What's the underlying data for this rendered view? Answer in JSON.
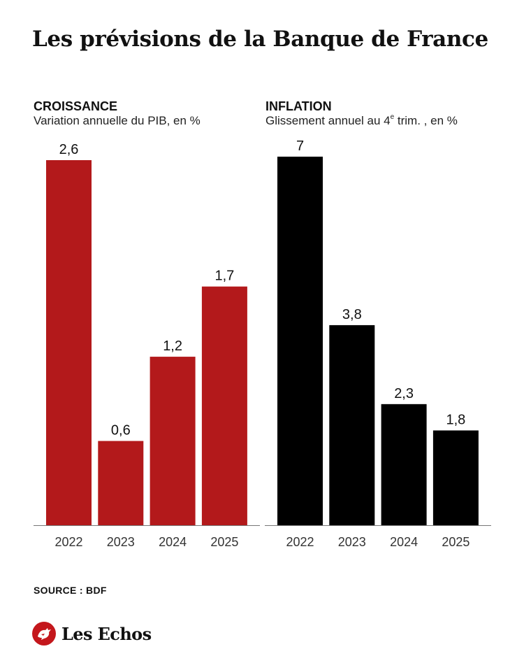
{
  "title": "Les prévisions de la Banque de France",
  "chart_data": [
    {
      "type": "bar",
      "title": "CROISSANCE",
      "subtitle": "Variation annuelle du PIB, en %",
      "categories": [
        "2022",
        "2023",
        "2024",
        "2025"
      ],
      "values": [
        2.6,
        0.6,
        1.2,
        1.7
      ],
      "value_labels": [
        "2,6",
        "0,6",
        "1,2",
        "1,7"
      ],
      "ylim": [
        0,
        2.6
      ],
      "color": "#b3191b",
      "grid": false
    },
    {
      "type": "bar",
      "title": "INFLATION",
      "subtitle_main": "Glissement annuel au 4",
      "subtitle_sup": "e",
      "subtitle_end": " trim. , en %",
      "categories": [
        "2022",
        "2023",
        "2024",
        "2025"
      ],
      "values": [
        7,
        3.8,
        2.3,
        1.8
      ],
      "value_labels": [
        "7",
        "3,8",
        "2,3",
        "1,8"
      ],
      "ylim": [
        0,
        7
      ],
      "color": "#000000",
      "grid": false
    }
  ],
  "source": "SOURCE : BDF",
  "logo": {
    "text": "Les Echos",
    "icon": "rooster-icon",
    "color": "#c4171c"
  }
}
